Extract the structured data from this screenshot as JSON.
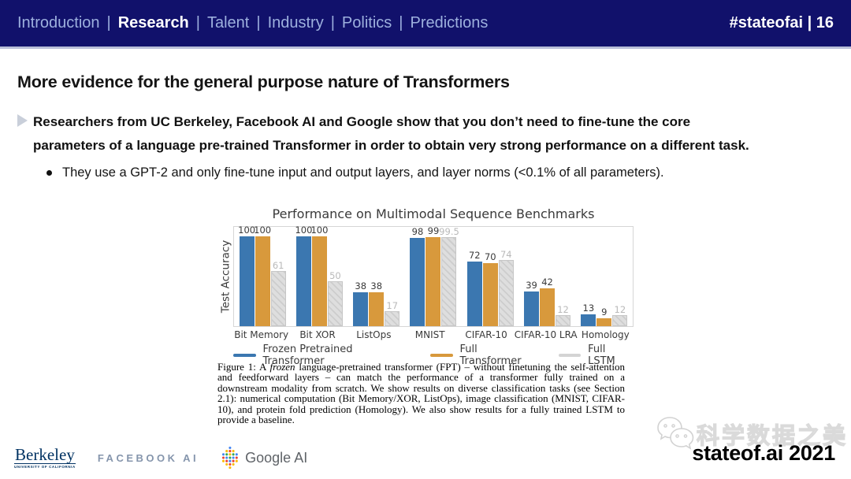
{
  "header": {
    "nav": [
      {
        "label": "Introduction",
        "active": false
      },
      {
        "label": "Research",
        "active": true
      },
      {
        "label": "Talent",
        "active": false
      },
      {
        "label": "Industry",
        "active": false
      },
      {
        "label": "Politics",
        "active": false
      },
      {
        "label": "Predictions",
        "active": false
      }
    ],
    "separator": "|",
    "right": "#stateofai | 16"
  },
  "slide": {
    "title": "More evidence for the general purpose nature of Transformers",
    "bullet_lines": [
      "Researchers from UC Berkeley, Facebook AI and Google show that you don’t need to fine-tune the core",
      "parameters of a language pre-trained Transformer in order to obtain very strong performance on a different task."
    ],
    "sub_bullet": "They use a GPT-2 and only fine-tune input and output layers, and layer norms (<0.1% of all parameters)."
  },
  "chart_data": {
    "type": "bar",
    "title": "Performance on Multimodal Sequence Benchmarks",
    "xlabel": "",
    "ylabel": "Test Accuracy",
    "ylim": [
      0,
      112
    ],
    "grid": false,
    "legend_position": "bottom",
    "categories": [
      "Bit Memory",
      "Bit XOR",
      "ListOps",
      "MNIST",
      "CIFAR-10",
      "CIFAR-10 LRA",
      "Homology"
    ],
    "series": [
      {
        "name": "Frozen Pretrained Transformer",
        "color": "#3b77b0",
        "hatch": false,
        "values": [
          100,
          100,
          38,
          98,
          72,
          39,
          13
        ]
      },
      {
        "name": "Full Transformer",
        "color": "#d8993c",
        "hatch": false,
        "values": [
          100,
          100,
          38,
          99,
          70,
          42,
          9
        ]
      },
      {
        "name": "Full LSTM",
        "color": "#dedede",
        "hatch": true,
        "values": [
          61,
          50,
          17,
          99.5,
          74,
          12,
          12
        ]
      }
    ]
  },
  "caption": {
    "before": "Figure 1: A ",
    "italic": "frozen",
    "after": " language-pretrained transformer (FPT) – without finetuning the self-attention and feedforward layers – can match the performance of a transformer fully trained on a downstream modality from scratch. We show results on diverse classification tasks (see Section 2.1): numerical computation (Bit Memory/XOR, ListOps), image classification (MNIST, CIFAR-10), and protein fold prediction (Homology). We also show results for a fully trained LSTM to provide a baseline."
  },
  "footer": {
    "berkeley_name": "Berkeley",
    "berkeley_sub": "UNIVERSITY OF CALIFORNIA",
    "facebook": "FACEBOOK AI",
    "google": "Google AI",
    "watermark": "科学数据之美",
    "stateofai": "stateof.ai 2021"
  },
  "colors": {
    "header_bg": "#11116b",
    "nav_inactive": "#9db0de",
    "nav_active": "#ffffff",
    "bar_blue": "#3b77b0",
    "bar_orange": "#d8993c",
    "bar_gray": "#dedede",
    "google_dots": [
      "#4285F4",
      "#EA4335",
      "#FBBC04",
      "#34A853"
    ]
  }
}
